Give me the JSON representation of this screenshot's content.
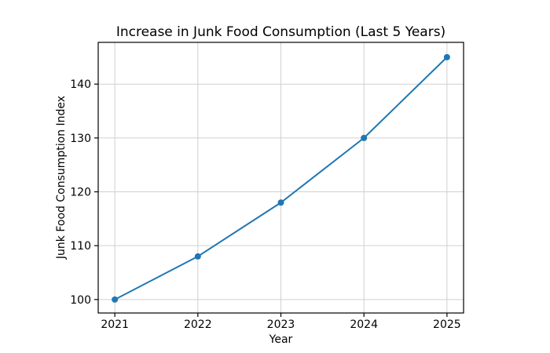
{
  "figure": {
    "background": "#ffffff"
  },
  "chart_data": {
    "type": "line",
    "title": "Increase in Junk Food Consumption (Last 5 Years)",
    "xlabel": "Year",
    "ylabel": "Junk Food Consumption Index",
    "x": [
      2021,
      2022,
      2023,
      2024,
      2025
    ],
    "series": [
      {
        "name": "Junk Food Consumption Index",
        "values": [
          100,
          108,
          118,
          130,
          145
        ]
      }
    ],
    "xticks": [
      "2021",
      "2022",
      "2023",
      "2024",
      "2025"
    ],
    "xtick_values": [
      2021,
      2022,
      2023,
      2024,
      2025
    ],
    "yticks": [
      "100",
      "110",
      "120",
      "130",
      "140"
    ],
    "ytick_values": [
      100,
      110,
      120,
      130,
      140
    ],
    "xlim": [
      2020.8,
      2025.2
    ],
    "ylim": [
      97.5,
      147.75
    ],
    "grid": true,
    "legend_position": "none",
    "line_color": "#1f77b4",
    "marker": "circle",
    "marker_color": "#1f77b4",
    "grid_color": "#d0d0d0",
    "axes_edge_color": "#000000",
    "text_color": "#000000"
  }
}
